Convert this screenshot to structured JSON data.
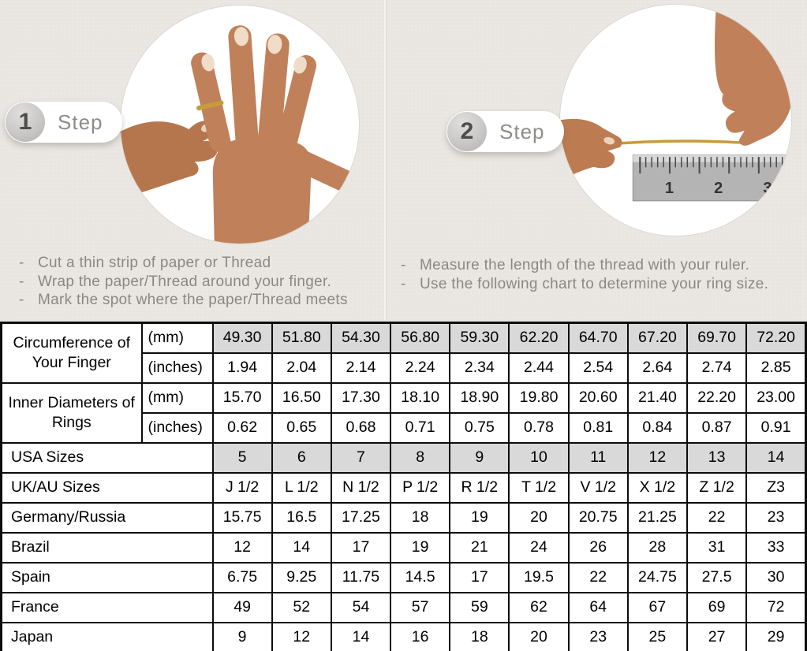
{
  "bullet": "-",
  "colors": {
    "background": "#e9e6e1",
    "table_shaded": "#d9d9d9",
    "table_border": "#0d0d0d",
    "instruction_text": "#8b8884",
    "gold_thread": "#c79a3b",
    "skin_tone": "#c0805a"
  },
  "steps": [
    {
      "number": "1",
      "label": "Step",
      "image": "hand-with-thread-wrapped-around-ring-finger",
      "instructions": [
        "Cut a thin strip of paper or Thread",
        "Wrap the paper/Thread around your finger.",
        "Mark the spot where the paper/Thread meets"
      ]
    },
    {
      "number": "2",
      "label": "Step",
      "image": "hands-measuring-thread-length-with-ruler",
      "ruler_marks": [
        "1",
        "2",
        "3"
      ],
      "instructions": [
        "Measure the length of the thread with your ruler.",
        "Use the following chart to determine your ring size."
      ]
    }
  ],
  "chart_data": {
    "type": "table",
    "title": "Ring size conversion chart",
    "measure_groups": [
      {
        "label": "Circumference of Your Finger",
        "rows": [
          {
            "unit": "(mm)",
            "shaded": true,
            "values": [
              "49.30",
              "51.80",
              "54.30",
              "56.80",
              "59.30",
              "62.20",
              "64.70",
              "67.20",
              "69.70",
              "72.20"
            ]
          },
          {
            "unit": "(inches)",
            "shaded": false,
            "values": [
              "1.94",
              "2.04",
              "2.14",
              "2.24",
              "2.34",
              "2.44",
              "2.54",
              "2.64",
              "2.74",
              "2.85"
            ]
          }
        ]
      },
      {
        "label": "Inner Diameters of Rings",
        "rows": [
          {
            "unit": "(mm)",
            "shaded": false,
            "values": [
              "15.70",
              "16.50",
              "17.30",
              "18.10",
              "18.90",
              "19.80",
              "20.60",
              "21.40",
              "22.20",
              "23.00"
            ]
          },
          {
            "unit": "(inches)",
            "shaded": false,
            "values": [
              "0.62",
              "0.65",
              "0.68",
              "0.71",
              "0.75",
              "0.78",
              "0.81",
              "0.84",
              "0.87",
              "0.91"
            ]
          }
        ]
      }
    ],
    "size_rows": [
      {
        "label": "USA Sizes",
        "shaded": true,
        "values": [
          "5",
          "6",
          "7",
          "8",
          "9",
          "10",
          "11",
          "12",
          "13",
          "14"
        ]
      },
      {
        "label": "UK/AU Sizes",
        "shaded": false,
        "values": [
          "J 1/2",
          "L 1/2",
          "N 1/2",
          "P 1/2",
          "R 1/2",
          "T 1/2",
          "V 1/2",
          "X 1/2",
          "Z 1/2",
          "Z3"
        ]
      },
      {
        "label": "Germany/Russia",
        "shaded": false,
        "values": [
          "15.75",
          "16.5",
          "17.25",
          "18",
          "19",
          "20",
          "20.75",
          "21.25",
          "22",
          "23"
        ]
      },
      {
        "label": "Brazil",
        "shaded": false,
        "values": [
          "12",
          "14",
          "17",
          "19",
          "21",
          "24",
          "26",
          "28",
          "31",
          "33"
        ]
      },
      {
        "label": "Spain",
        "shaded": false,
        "values": [
          "6.75",
          "9.25",
          "11.75",
          "14.5",
          "17",
          "19.5",
          "22",
          "24.75",
          "27.5",
          "30"
        ]
      },
      {
        "label": "France",
        "shaded": false,
        "values": [
          "49",
          "52",
          "54",
          "57",
          "59",
          "62",
          "64",
          "67",
          "69",
          "72"
        ]
      },
      {
        "label": "Japan",
        "shaded": false,
        "values": [
          "9",
          "12",
          "14",
          "16",
          "18",
          "20",
          "23",
          "25",
          "27",
          "29"
        ]
      }
    ]
  }
}
